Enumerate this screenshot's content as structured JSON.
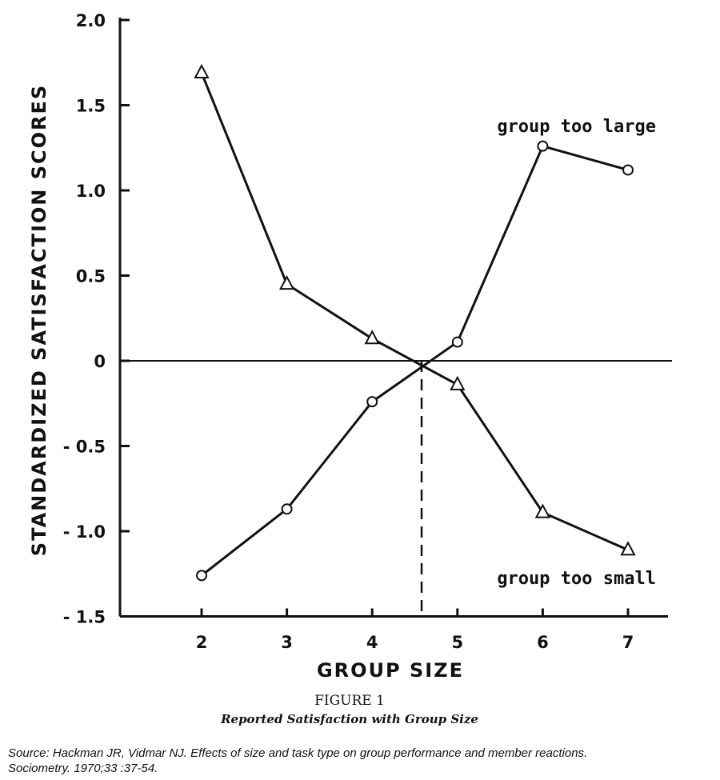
{
  "chart_data": {
    "type": "line",
    "xlabel": "GROUP SIZE",
    "ylabel": "STANDARDIZED SATISFACTION SCORES",
    "x": [
      2,
      3,
      4,
      5,
      6,
      7
    ],
    "xticks": [
      "2",
      "3",
      "4",
      "5",
      "6",
      "7"
    ],
    "yticks": [
      {
        "v": 2.0,
        "t": "2.0"
      },
      {
        "v": 1.5,
        "t": "1.5"
      },
      {
        "v": 1.0,
        "t": "1.0"
      },
      {
        "v": 0.5,
        "t": "0.5"
      },
      {
        "v": 0,
        "t": "0"
      },
      {
        "v": -0.5,
        "t": "-0.5"
      },
      {
        "v": -1.0,
        "t": "-1.0"
      },
      {
        "v": -1.5,
        "t": "-1.5"
      }
    ],
    "xlim": [
      1,
      8
    ],
    "ylim": [
      -1.5,
      2.0
    ],
    "grid": false,
    "series": [
      {
        "name": "group too small",
        "marker": "triangle",
        "values": [
          1.69,
          0.45,
          0.13,
          -0.14,
          -0.89,
          -1.11
        ]
      },
      {
        "name": "group too large",
        "marker": "circle",
        "values": [
          -1.26,
          -0.87,
          -0.24,
          0.11,
          1.26,
          1.12
        ]
      }
    ],
    "reference_lines": {
      "horizontal_y": 0,
      "dashed_vertical_x": 4.58
    },
    "figure_number": "FIGURE 1",
    "figure_caption": "Reported Satisfaction with Group Size"
  },
  "source": {
    "line1": "Source: Hackman JR, Vidmar NJ. Effects of size and task type on group performance and member reactions.",
    "line2": "Sociometry. 1970;33 :37-54."
  }
}
